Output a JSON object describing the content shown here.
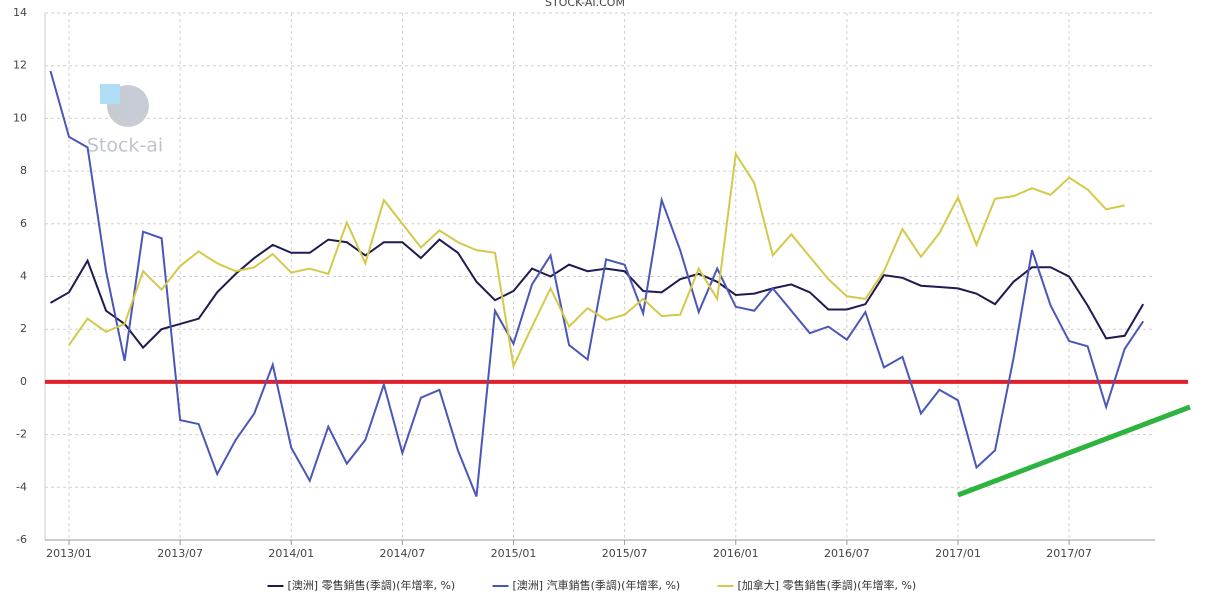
{
  "chart_data": {
    "type": "line",
    "title": "STOCK-AI.COM",
    "watermark": "Stock-ai",
    "categories": [
      null,
      "2013/01",
      null,
      null,
      null,
      null,
      null,
      "2013/07",
      null,
      null,
      null,
      null,
      null,
      "2014/01",
      null,
      null,
      null,
      null,
      null,
      "2014/07",
      null,
      null,
      null,
      null,
      null,
      "2015/01",
      null,
      null,
      null,
      null,
      null,
      "2015/07",
      null,
      null,
      null,
      null,
      null,
      "2016/01",
      null,
      null,
      null,
      null,
      null,
      "2016/07",
      null,
      null,
      null,
      null,
      null,
      "2017/01",
      null,
      null,
      null,
      null,
      null,
      "2017/07",
      null,
      null,
      null,
      null
    ],
    "series": [
      {
        "name": "[澳洲] 零售銷售(季調)(年增率, %)",
        "color": "#1f1a4f",
        "values": [
          3.0,
          3.4,
          4.6,
          2.7,
          2.2,
          1.3,
          2.0,
          2.2,
          2.4,
          3.4,
          4.1,
          4.7,
          5.2,
          4.9,
          4.9,
          5.4,
          5.3,
          4.8,
          5.3,
          5.3,
          4.7,
          5.4,
          4.9,
          3.8,
          3.1,
          3.45,
          4.3,
          4.0,
          4.45,
          4.2,
          4.3,
          4.2,
          3.45,
          3.4,
          3.9,
          4.1,
          3.8,
          3.3,
          3.35,
          3.55,
          3.7,
          3.4,
          2.75,
          2.75,
          2.95,
          4.05,
          3.95,
          3.65,
          3.6,
          3.55,
          3.35,
          2.95,
          3.8,
          4.35,
          4.35,
          4.0,
          2.9,
          1.65,
          1.75,
          2.95
        ]
      },
      {
        "name": "[澳洲] 汽車銷售(季調)(年增率, %)",
        "color": "#4a56b8",
        "values": [
          11.8,
          9.3,
          8.9,
          4.2,
          0.8,
          5.7,
          5.45,
          -1.45,
          -1.6,
          -3.5,
          -2.2,
          -1.2,
          0.65,
          -2.5,
          -3.75,
          -1.7,
          -3.1,
          -2.2,
          -0.1,
          -2.7,
          -0.6,
          -0.3,
          -2.6,
          -4.35,
          2.7,
          1.45,
          3.7,
          4.8,
          1.4,
          0.85,
          4.65,
          4.45,
          2.6,
          6.9,
          5.0,
          2.65,
          4.3,
          2.85,
          2.7,
          3.55,
          2.7,
          1.85,
          2.1,
          1.6,
          2.65,
          0.55,
          0.95,
          -1.2,
          -0.3,
          -0.7,
          -3.25,
          -2.6,
          0.9,
          5.0,
          2.9,
          1.55,
          1.35,
          -0.95,
          1.25,
          2.3
        ]
      },
      {
        "name": "[加拿大] 零售銷售(季調)(年增率, %)",
        "color": "#d4c94a",
        "values": [
          null,
          1.4,
          2.4,
          1.9,
          2.2,
          4.2,
          3.5,
          4.4,
          4.95,
          4.5,
          4.2,
          4.35,
          4.85,
          4.15,
          4.3,
          4.1,
          6.05,
          4.5,
          6.9,
          6.0,
          5.1,
          5.75,
          5.3,
          5.0,
          4.9,
          0.6,
          2.1,
          3.55,
          2.1,
          2.8,
          2.35,
          2.55,
          3.15,
          2.5,
          2.55,
          4.3,
          3.15,
          8.65,
          7.55,
          4.8,
          5.6,
          4.75,
          3.9,
          3.25,
          3.15,
          4.2,
          5.8,
          4.75,
          5.65,
          7.0,
          5.2,
          6.95,
          7.05,
          7.35,
          7.1,
          7.75,
          7.3,
          6.55,
          6.7,
          null
        ]
      }
    ],
    "reference_lines": [
      {
        "value": 0,
        "color": "#e0202a"
      }
    ],
    "ylim": [
      -6,
      14
    ],
    "yticks": [
      -6,
      -4,
      -2,
      0,
      2,
      4,
      6,
      8,
      10,
      12,
      14
    ],
    "grid": true,
    "legend": "bottom"
  }
}
